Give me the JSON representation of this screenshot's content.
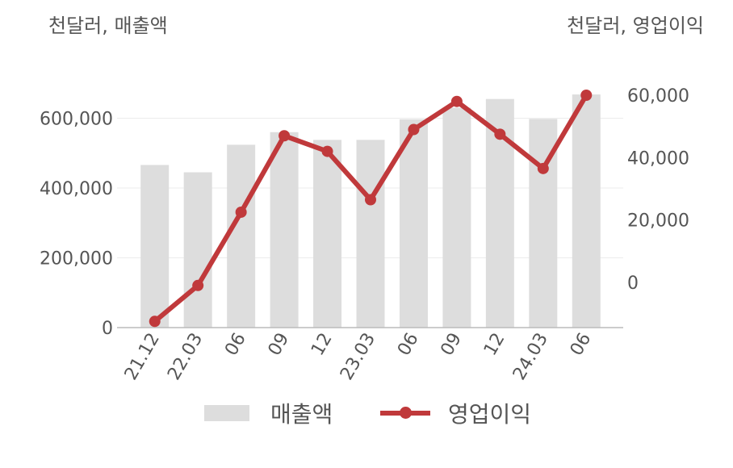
{
  "units": {
    "left": "천달러, 매출액",
    "right": "천달러, 영업이익"
  },
  "legend": {
    "bar_label": "매출액",
    "line_label": "영업이익"
  },
  "colors": {
    "bar": "#dddddd",
    "line": "#c0393b",
    "axis": "#bbbbbb",
    "grid": "#ececec"
  },
  "chart_data": {
    "type": "bar+line",
    "categories": [
      "21.12",
      "22.03",
      "06",
      "09",
      "12",
      "23.03",
      "06",
      "09",
      "12",
      "24.03",
      "06"
    ],
    "series": [
      {
        "name": "매출액",
        "type": "bar",
        "axis": "left",
        "values": [
          466000,
          445000,
          524000,
          560000,
          538000,
          538000,
          597000,
          630000,
          655000,
          598000,
          668000
        ]
      },
      {
        "name": "영업이익",
        "type": "line",
        "axis": "right",
        "values": [
          -12500,
          -1000,
          22500,
          47000,
          42000,
          26500,
          49000,
          58000,
          47500,
          36500,
          60000
        ]
      }
    ],
    "left_axis": {
      "ticks": [
        "0",
        "200,000",
        "400,000",
        "600,000"
      ],
      "tick_values": [
        0,
        200000,
        400000,
        600000
      ],
      "ylim": [
        0,
        800000
      ]
    },
    "right_axis": {
      "ticks": [
        "0",
        "20,000",
        "40,000",
        "60,000"
      ],
      "tick_values": [
        0,
        20000,
        40000,
        60000
      ],
      "ylim": [
        -14500,
        75000
      ]
    },
    "grid": true,
    "legend_position": "bottom"
  }
}
